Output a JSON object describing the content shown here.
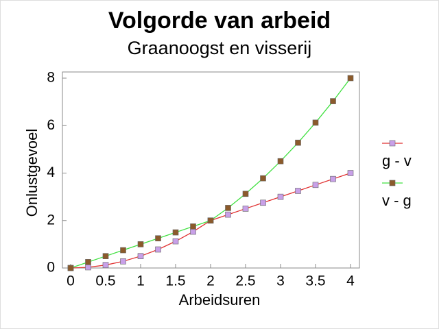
{
  "chart_data": {
    "type": "line",
    "title": "Volgorde van arbeid",
    "subtitle": "Graanoogst en visserij",
    "x_label": "Arbeidsuren",
    "y_label": "Onlustgevoel",
    "x": [
      0,
      0.25,
      0.5,
      0.75,
      1,
      1.25,
      1.5,
      1.75,
      2,
      2.25,
      2.5,
      2.75,
      3,
      3.25,
      3.5,
      3.75,
      4
    ],
    "series": [
      {
        "name": "g - v",
        "color": "#e03030",
        "marker_color": "#c8a0e8",
        "values": [
          0,
          0.03,
          0.125,
          0.28,
          0.5,
          0.78,
          1.125,
          1.53,
          2,
          2.25,
          2.5,
          2.75,
          3,
          3.25,
          3.5,
          3.75,
          4
        ]
      },
      {
        "name": "v - g",
        "color": "#40e040",
        "marker_color": "#8b5a2b",
        "values": [
          0,
          0.25,
          0.5,
          0.75,
          1,
          1.25,
          1.5,
          1.75,
          2,
          2.53,
          3.125,
          3.78,
          4.5,
          5.28,
          6.125,
          7.03,
          8
        ]
      }
    ],
    "xlim": [
      0,
      4
    ],
    "ylim": [
      0,
      8
    ],
    "xticks": [
      0,
      0.5,
      1,
      1.5,
      2,
      2.5,
      3,
      3.5,
      4
    ],
    "yticks": [
      0,
      2,
      4,
      6,
      8
    ],
    "legend": "right"
  }
}
